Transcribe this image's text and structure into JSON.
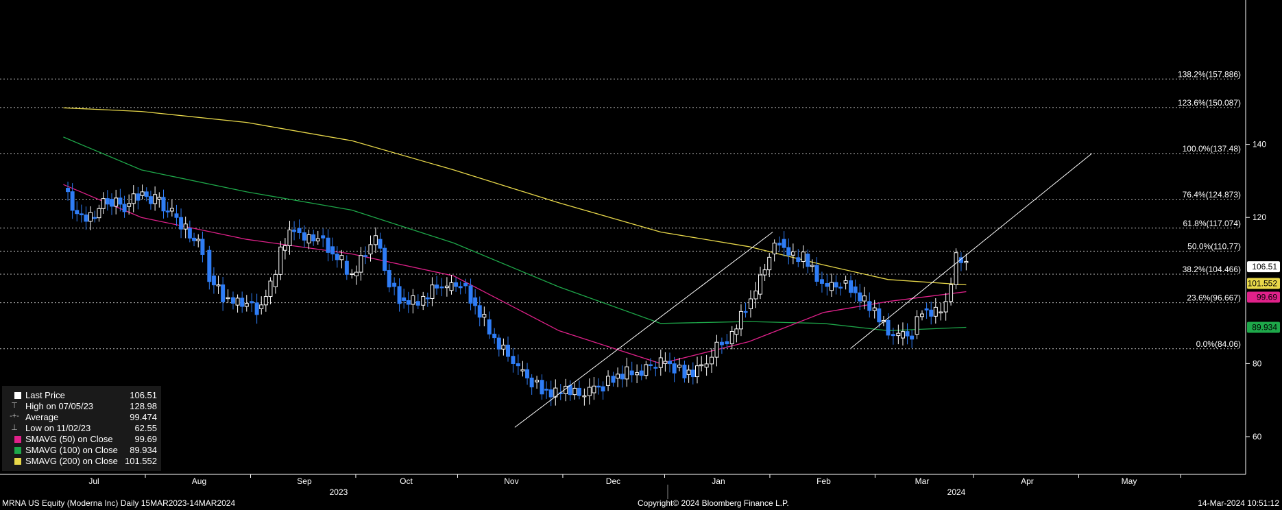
{
  "colors": {
    "background": "#000000",
    "up_candle": "#ffffff",
    "down_candle": "#2f7df6",
    "sma50": "#e0218a",
    "sma100": "#1ea84a",
    "sma200": "#e8d84a",
    "price_tag": "#ffffff",
    "fib_line": "#bdbdbd"
  },
  "legend": {
    "rows": [
      {
        "label": "Last Price",
        "value": "106.51",
        "swatch": "#ffffff",
        "glyph": ""
      },
      {
        "label": "High on 07/05/23",
        "value": "128.98",
        "swatch": "",
        "glyph": "high-marker"
      },
      {
        "label": "Average",
        "value": "99.474",
        "swatch": "",
        "glyph": "average-marker"
      },
      {
        "label": "Low on 11/02/23",
        "value": "62.55",
        "swatch": "",
        "glyph": "low-marker"
      },
      {
        "label": "SMAVG (50)  on Close",
        "value": "99.69",
        "swatch": "#e0218a",
        "glyph": ""
      },
      {
        "label": "SMAVG (100)  on Close",
        "value": "89.934",
        "swatch": "#1ea84a",
        "glyph": ""
      },
      {
        "label": "SMAVG (200)  on Close",
        "value": "101.552",
        "swatch": "#e8d84a",
        "glyph": ""
      }
    ]
  },
  "footer": {
    "left": "MRNA US Equity (Moderna Inc)  Daily 15MAR2023-14MAR2024",
    "center": "Copyright© 2024 Bloomberg Finance L.P.",
    "right": "14-Mar-2024 10:51:12"
  },
  "chart_data": {
    "type": "candlestick",
    "ylim": [
      50,
      166
    ],
    "y_ticks": [
      60,
      80,
      120,
      140
    ],
    "x_months": [
      {
        "label": "Jul",
        "date": "2023-07-01"
      },
      {
        "label": "Aug",
        "date": "2023-08-01"
      },
      {
        "label": "Sep",
        "date": "2023-09-01"
      },
      {
        "label": "Oct",
        "date": "2023-10-01"
      },
      {
        "label": "Nov",
        "date": "2023-11-01"
      },
      {
        "label": "Dec",
        "date": "2023-12-01"
      },
      {
        "label": "Jan",
        "date": "2024-01-01"
      },
      {
        "label": "Feb",
        "date": "2024-02-01"
      },
      {
        "label": "Mar",
        "date": "2024-03-01"
      },
      {
        "label": "Apr",
        "date": "2024-04-01"
      },
      {
        "label": "May",
        "date": "2024-05-01"
      }
    ],
    "x_years": [
      {
        "label": "2023",
        "date": "2023-09-01"
      },
      {
        "label": "2024",
        "date": "2024-03-01"
      }
    ],
    "close_series": [
      [
        "2023-06-22",
        128
      ],
      [
        "2023-06-26",
        121
      ],
      [
        "2023-06-30",
        120
      ],
      [
        "2023-07-05",
        125
      ],
      [
        "2023-07-10",
        123
      ],
      [
        "2023-07-14",
        126
      ],
      [
        "2023-07-19",
        125
      ],
      [
        "2023-07-24",
        121
      ],
      [
        "2023-07-28",
        117
      ],
      [
        "2023-08-02",
        111
      ],
      [
        "2023-08-04",
        104
      ],
      [
        "2023-08-08",
        98
      ],
      [
        "2023-08-11",
        96
      ],
      [
        "2023-08-15",
        97
      ],
      [
        "2023-08-18",
        95
      ],
      [
        "2023-08-22",
        101
      ],
      [
        "2023-08-25",
        111
      ],
      [
        "2023-08-29",
        117
      ],
      [
        "2023-09-01",
        113
      ],
      [
        "2023-09-05",
        115
      ],
      [
        "2023-09-08",
        112
      ],
      [
        "2023-09-12",
        108
      ],
      [
        "2023-09-15",
        104
      ],
      [
        "2023-09-19",
        110
      ],
      [
        "2023-09-22",
        114
      ],
      [
        "2023-09-26",
        102
      ],
      [
        "2023-09-29",
        98
      ],
      [
        "2023-10-03",
        97
      ],
      [
        "2023-10-06",
        98
      ],
      [
        "2023-10-10",
        101
      ],
      [
        "2023-10-13",
        100
      ],
      [
        "2023-10-17",
        102
      ],
      [
        "2023-10-20",
        98
      ],
      [
        "2023-10-24",
        92
      ],
      [
        "2023-10-27",
        87
      ],
      [
        "2023-10-31",
        82
      ],
      [
        "2023-11-03",
        78
      ],
      [
        "2023-11-07",
        75
      ],
      [
        "2023-11-10",
        73
      ],
      [
        "2023-11-14",
        72
      ],
      [
        "2023-11-17",
        74
      ],
      [
        "2023-11-21",
        71
      ],
      [
        "2023-11-24",
        72
      ],
      [
        "2023-11-28",
        74
      ],
      [
        "2023-12-01",
        76
      ],
      [
        "2023-12-05",
        78
      ],
      [
        "2023-12-08",
        78
      ],
      [
        "2023-12-12",
        79
      ],
      [
        "2023-12-15",
        80
      ],
      [
        "2023-12-19",
        79
      ],
      [
        "2023-12-22",
        77
      ],
      [
        "2023-12-27",
        79
      ],
      [
        "2024-01-02",
        86
      ],
      [
        "2024-01-05",
        88
      ],
      [
        "2024-01-09",
        95
      ],
      [
        "2024-01-12",
        99
      ],
      [
        "2024-01-16",
        110
      ],
      [
        "2024-01-19",
        114
      ],
      [
        "2024-01-23",
        109
      ],
      [
        "2024-01-26",
        110
      ],
      [
        "2024-01-30",
        103
      ],
      [
        "2024-02-02",
        100
      ],
      [
        "2024-02-06",
        102
      ],
      [
        "2024-02-09",
        101
      ],
      [
        "2024-02-13",
        97
      ],
      [
        "2024-02-16",
        95
      ],
      [
        "2024-02-20",
        88
      ],
      [
        "2024-02-23",
        87
      ],
      [
        "2024-02-27",
        88
      ],
      [
        "2024-03-01",
        95
      ],
      [
        "2024-03-05",
        94
      ],
      [
        "2024-03-08",
        97
      ],
      [
        "2024-03-11",
        109
      ],
      [
        "2024-03-14",
        106.51
      ]
    ],
    "sma200": [
      [
        "2023-06-22",
        150
      ],
      [
        "2023-07-15",
        149
      ],
      [
        "2023-08-15",
        146
      ],
      [
        "2023-09-15",
        141
      ],
      [
        "2023-10-15",
        133
      ],
      [
        "2023-11-15",
        124
      ],
      [
        "2023-12-15",
        116
      ],
      [
        "2024-01-10",
        112
      ],
      [
        "2024-02-01",
        107
      ],
      [
        "2024-02-20",
        103
      ],
      [
        "2024-03-14",
        101.552
      ]
    ],
    "sma100": [
      [
        "2023-06-22",
        142
      ],
      [
        "2023-07-15",
        133
      ],
      [
        "2023-08-15",
        127
      ],
      [
        "2023-09-15",
        122
      ],
      [
        "2023-10-15",
        113
      ],
      [
        "2023-11-15",
        101
      ],
      [
        "2023-12-15",
        91
      ],
      [
        "2024-01-10",
        91.5
      ],
      [
        "2024-02-01",
        91
      ],
      [
        "2024-02-20",
        89
      ],
      [
        "2024-03-14",
        89.934
      ]
    ],
    "sma50": [
      [
        "2023-06-22",
        129
      ],
      [
        "2023-07-15",
        120
      ],
      [
        "2023-08-15",
        114
      ],
      [
        "2023-09-15",
        110
      ],
      [
        "2023-10-15",
        104
      ],
      [
        "2023-11-15",
        89
      ],
      [
        "2023-12-15",
        80
      ],
      [
        "2024-01-10",
        86
      ],
      [
        "2024-02-01",
        94
      ],
      [
        "2024-02-20",
        97
      ],
      [
        "2024-03-14",
        99.69
      ]
    ],
    "fibonacci": [
      {
        "label": "0.0%(84.06)",
        "value": 84.06
      },
      {
        "label": "23.6%(96.667)",
        "value": 96.667
      },
      {
        "label": "38.2%(104.466)",
        "value": 104.466
      },
      {
        "label": "50.0%(110.77)",
        "value": 110.77
      },
      {
        "label": "61.8%(117.074)",
        "value": 117.074
      },
      {
        "label": "76.4%(124.873)",
        "value": 124.873
      },
      {
        "label": "100.0%(137.48)",
        "value": 137.48
      },
      {
        "label": "123.6%(150.087)",
        "value": 150.087
      },
      {
        "label": "138.2%(157.886)",
        "value": 157.886
      }
    ],
    "trendlines": [
      [
        [
          "2023-11-02",
          62.55
        ],
        [
          "2024-01-17",
          116
        ]
      ],
      [
        [
          "2024-02-09",
          84.2
        ],
        [
          "2024-04-20",
          137.48
        ]
      ]
    ],
    "price_tags": [
      {
        "label": "106.51",
        "value": 106.51,
        "series": "last"
      },
      {
        "label": "101.552",
        "value": 101.552,
        "series": "sma200"
      },
      {
        "label": "99.69",
        "value": 99.69,
        "series": "sma50"
      },
      {
        "label": "89.934",
        "value": 89.934,
        "series": "sma100"
      }
    ]
  }
}
